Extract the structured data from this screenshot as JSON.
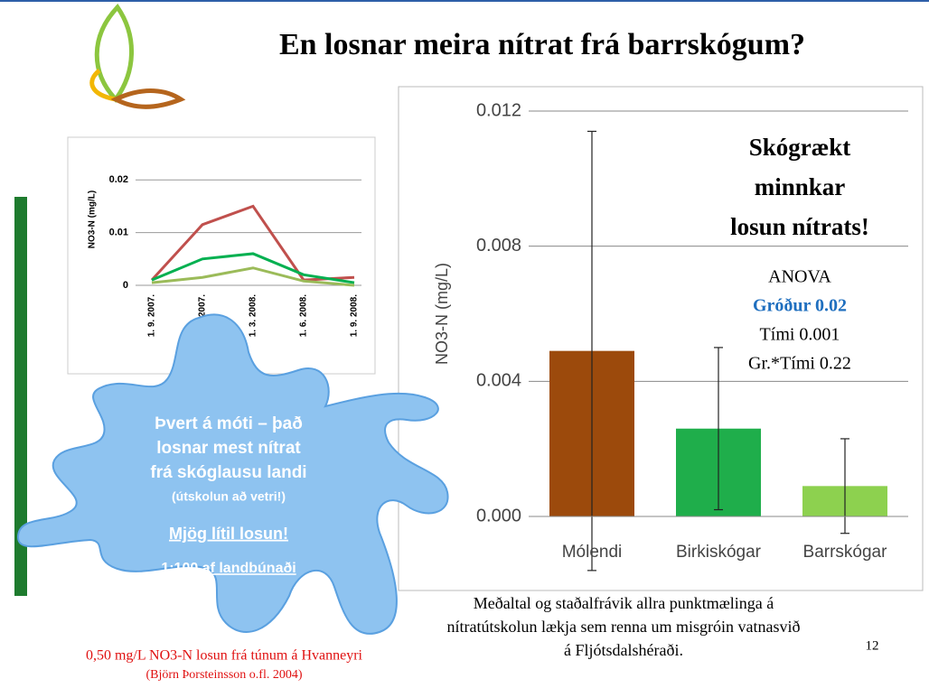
{
  "title": "En losnar meira nítrat frá barrskógum?",
  "blob_text": [
    "Þvert á móti – það",
    "losnar mest nítrat",
    "frá skóglausu landi",
    "(útskolun að vetri!)",
    "Mjög lítil losun!",
    "1:100 af landbúnaði"
  ],
  "footer": [
    "0,50 mg/L NO3-N  losun frá túnum á Hvanneyri",
    "(Björn Þorsteinsson o.fl. 2004)"
  ],
  "caption": [
    "Meðaltal og staðalfrávik allra punktmælinga á",
    "nítratútskolun lækja sem renna um misgróin vatnasvið",
    "á Fljótsdalshéraði."
  ],
  "page_number": "12",
  "chart_data": [
    {
      "type": "line",
      "ylabel": "NO3-N (mg/L)",
      "categories": [
        "1. 9. 2007.",
        "1. 12. 2007.",
        "1. 3. 2008.",
        "1. 6. 2008.",
        "1. 9. 2008."
      ],
      "series": [
        {
          "name": null,
          "color": "#c0504d",
          "values": [
            0.001,
            0.0115,
            0.015,
            0.001,
            0.0015
          ]
        },
        {
          "name": null,
          "color": "#00b050",
          "values": [
            0.001,
            0.005,
            0.006,
            0.002,
            0.0005
          ]
        },
        {
          "name": null,
          "color": "#9bbb59",
          "values": [
            0.0005,
            0.0015,
            0.0033,
            0.0008,
            0
          ]
        }
      ],
      "ylim": [
        0,
        0.025
      ],
      "yticks": [
        0,
        0.01,
        0.02
      ],
      "grid": true
    },
    {
      "type": "bar",
      "ylabel": "NO3-N (mg/L)",
      "categories": [
        "Mólendi",
        "Birkiskógar",
        "Barrskógar"
      ],
      "values": [
        0.0049,
        0.0026,
        0.0009
      ],
      "errors": [
        0.0065,
        0.0024,
        0.0014
      ],
      "colors": [
        "#9c4a0c",
        "#1fae4b",
        "#8dd14f"
      ],
      "ylim": [
        0,
        0.012
      ],
      "yticks": [
        {
          "value": 0,
          "label": "0.000"
        },
        {
          "value": 0.004,
          "label": "0.004"
        },
        {
          "value": 0.008,
          "label": "0.008"
        },
        {
          "value": 0.012,
          "label": "0.012"
        }
      ],
      "grid": true,
      "annotation": [
        "Skógrækt",
        "minnkar",
        "losun nítrats!"
      ],
      "anova": [
        "ANOVA",
        "Gróður 0.02",
        "Tími 0.001",
        "Gr.*Tími 0.22"
      ]
    }
  ]
}
